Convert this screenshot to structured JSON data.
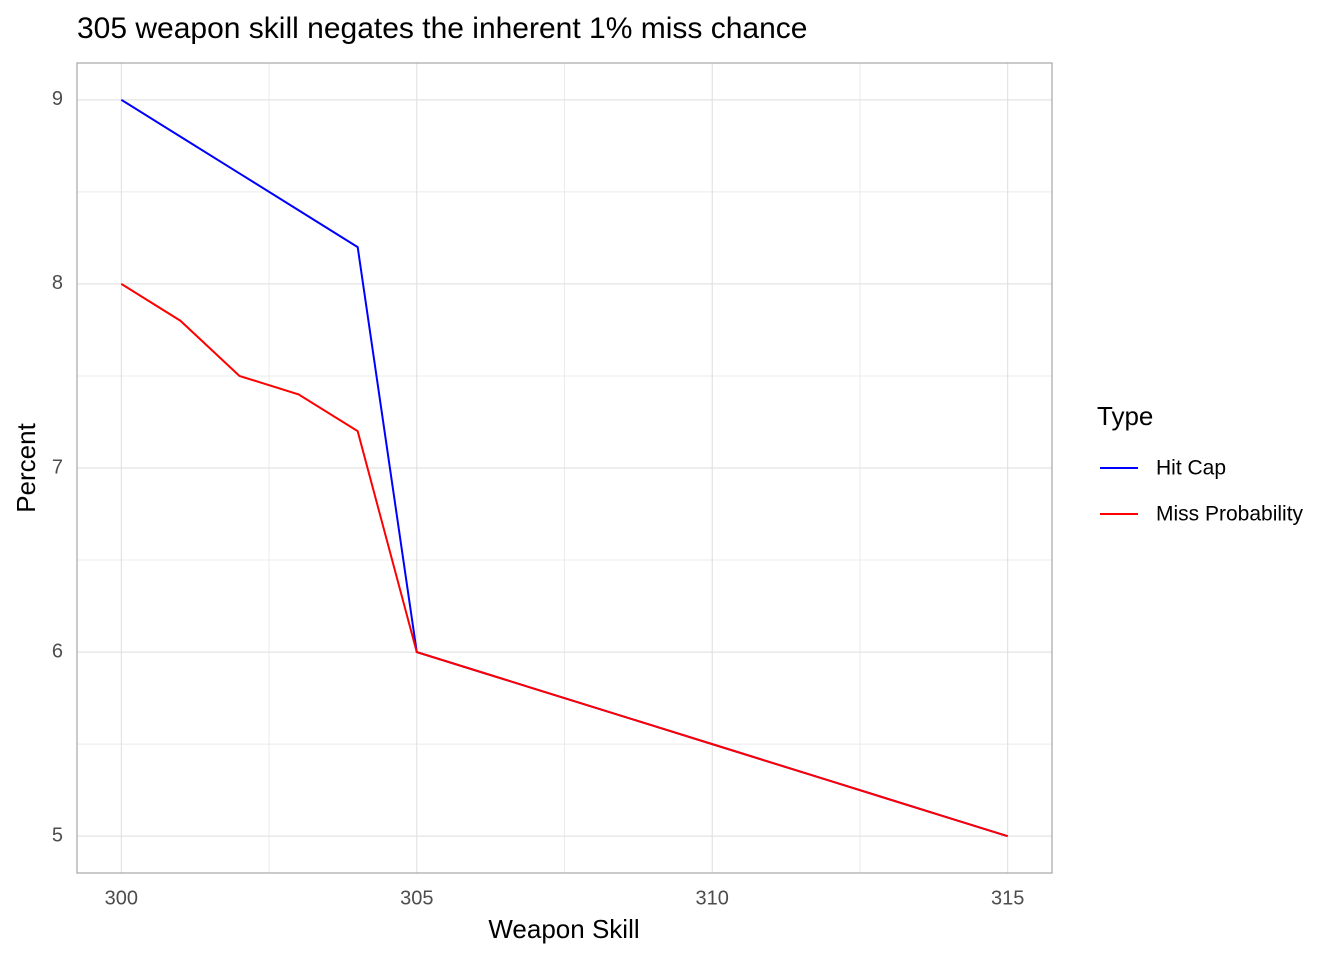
{
  "chart_data": {
    "type": "line",
    "title": "305 weapon skill negates the inherent 1% miss chance",
    "x_label": "Weapon Skill",
    "y_label": "Percent",
    "legend_title": "Type",
    "x": [
      300,
      301,
      302,
      303,
      304,
      305,
      306,
      307,
      308,
      309,
      310,
      311,
      312,
      313,
      314,
      315
    ],
    "series": [
      {
        "name": "Hit Cap",
        "color": "#0000ff",
        "values": [
          9,
          8.8,
          8.6,
          8.4,
          8.2,
          6,
          5.9,
          5.8,
          5.7,
          5.6,
          5.5,
          5.4,
          5.3,
          5.2,
          5.1,
          5
        ]
      },
      {
        "name": "Miss Probability",
        "color": "#ff0000",
        "values": [
          8,
          7.8,
          7.5,
          7.4,
          7.2,
          6,
          5.9,
          5.8,
          5.7,
          5.6,
          5.5,
          5.4,
          5.3,
          5.2,
          5.1,
          5
        ]
      }
    ],
    "xlim": [
      299.25,
      315.75
    ],
    "ylim": [
      4.8,
      9.2
    ],
    "xticks": [
      300,
      305,
      310,
      315
    ],
    "yticks": [
      5,
      6,
      7,
      8,
      9
    ],
    "minor_xticks": [
      302.5,
      307.5,
      312.5
    ],
    "minor_yticks": [
      5.5,
      6.5,
      7.5,
      8.5
    ],
    "grid": true,
    "legend": "right"
  }
}
